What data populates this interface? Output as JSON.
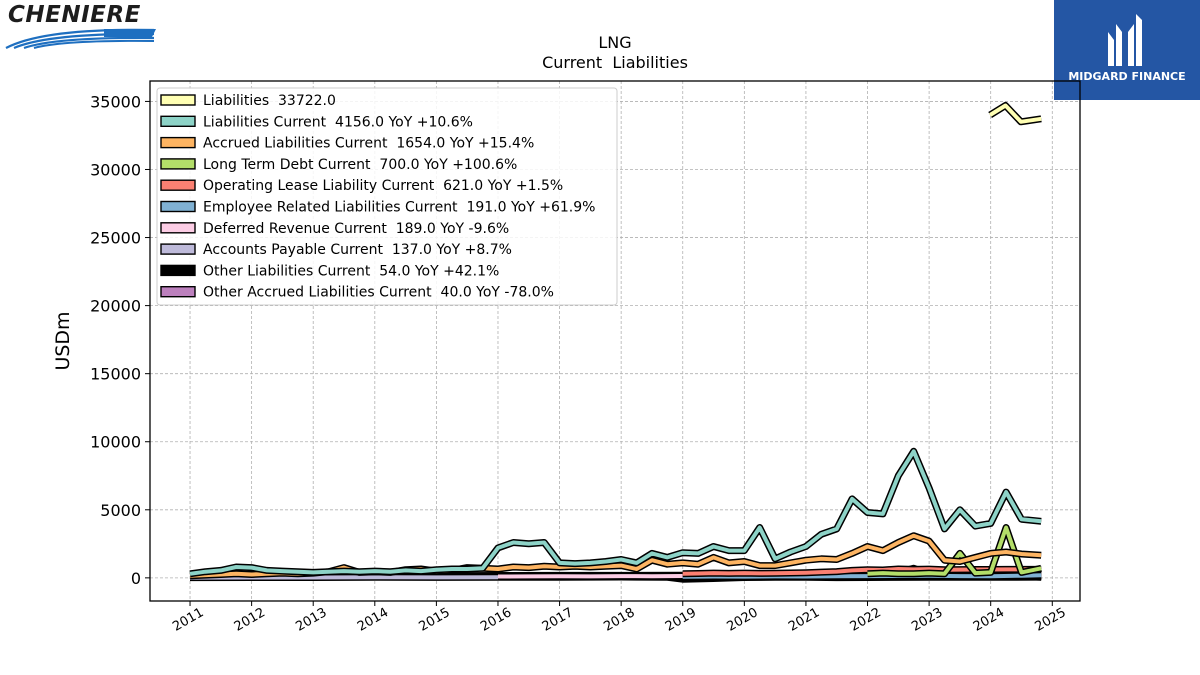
{
  "branding": {
    "left_logo_text": "CHENIERE",
    "right_logo_text": "MIDGARD FINANCE"
  },
  "colors": {
    "right_logo_bg": "#2456a4",
    "left_logo_swoosh": "#1e6fc0"
  },
  "chart_data": {
    "type": "line",
    "title": "LNG",
    "subtitle": "Current  Liabilities",
    "xlabel": "",
    "ylabel": "USDm",
    "xlim": [
      2010.35,
      2025.45
    ],
    "ylim": [
      -1700,
      36500
    ],
    "yticks": [
      0,
      5000,
      10000,
      15000,
      20000,
      25000,
      30000,
      35000
    ],
    "xticks": [
      "2011",
      "2012",
      "2013",
      "2014",
      "2015",
      "2016",
      "2017",
      "2018",
      "2019",
      "2020",
      "2021",
      "2022",
      "2023",
      "2024",
      "2025"
    ],
    "grid": true,
    "legend_position": "top-left",
    "series": [
      {
        "name": "Liabilities",
        "legend": "Liabilities  33722.0",
        "color": "#ffffb3",
        "x": [
          2023.99,
          2024.24,
          2024.49,
          2024.82
        ],
        "y": [
          34000,
          34700,
          33500,
          33722
        ]
      },
      {
        "name": "Liabilities Current",
        "legend": "Liabilities Current  4156.0 YoY +10.6%",
        "color": "#8dd3c7",
        "x": [
          2011.0,
          2011.25,
          2011.5,
          2011.75,
          2012.0,
          2012.25,
          2012.5,
          2012.75,
          2013.0,
          2013.25,
          2013.5,
          2013.75,
          2014.0,
          2014.25,
          2014.5,
          2014.75,
          2015.0,
          2015.25,
          2015.5,
          2015.75,
          2016.0,
          2016.25,
          2016.5,
          2016.75,
          2017.0,
          2017.25,
          2017.5,
          2017.75,
          2018.0,
          2018.25,
          2018.5,
          2018.75,
          2019.0,
          2019.25,
          2019.5,
          2019.75,
          2020.0,
          2020.25,
          2020.5,
          2020.75,
          2021.0,
          2021.25,
          2021.5,
          2021.75,
          2022.0,
          2022.25,
          2022.5,
          2022.75,
          2023.0,
          2023.25,
          2023.5,
          2023.75,
          2024.0,
          2024.25,
          2024.5,
          2024.82
        ],
        "y": [
          300,
          450,
          550,
          800,
          750,
          550,
          500,
          450,
          400,
          450,
          500,
          450,
          500,
          450,
          550,
          500,
          600,
          650,
          650,
          700,
          2200,
          2600,
          2500,
          2600,
          1100,
          1050,
          1100,
          1200,
          1350,
          1100,
          1800,
          1500,
          1850,
          1800,
          2300,
          2000,
          2000,
          3700,
          1400,
          1900,
          2300,
          3200,
          3600,
          5800,
          4800,
          4700,
          7500,
          9300,
          6600,
          3600,
          5000,
          3800,
          4000,
          6300,
          4300,
          4156
        ]
      },
      {
        "name": "Accrued Liabilities Current",
        "legend": "Accrued Liabilities Current  1654.0 YoY +15.4%",
        "color": "#fdb462",
        "x": [
          2011.0,
          2011.25,
          2011.5,
          2011.75,
          2012.0,
          2012.25,
          2012.5,
          2012.75,
          2013.0,
          2013.25,
          2013.5,
          2013.75,
          2014.0,
          2014.25,
          2014.5,
          2014.75,
          2015.0,
          2015.25,
          2015.5,
          2015.75,
          2016.0,
          2016.25,
          2016.5,
          2016.75,
          2017.0,
          2017.25,
          2017.5,
          2017.75,
          2018.0,
          2018.25,
          2018.5,
          2018.75,
          2019.0,
          2019.25,
          2019.5,
          2019.75,
          2020.0,
          2020.25,
          2020.5,
          2020.75,
          2021.0,
          2021.25,
          2021.5,
          2021.75,
          2022.0,
          2022.25,
          2022.5,
          2022.75,
          2023.0,
          2023.25,
          2023.5,
          2023.75,
          2024.0,
          2024.25,
          2024.5,
          2024.82
        ],
        "y": [
          150,
          200,
          250,
          300,
          250,
          300,
          350,
          300,
          350,
          450,
          750,
          400,
          450,
          400,
          600,
          650,
          500,
          550,
          750,
          700,
          650,
          800,
          750,
          850,
          800,
          850,
          800,
          850,
          900,
          650,
          1300,
          1000,
          1100,
          1000,
          1500,
          1100,
          1200,
          900,
          900,
          1100,
          1300,
          1400,
          1350,
          1800,
          2300,
          2000,
          2600,
          3100,
          2700,
          1300,
          1200,
          1500,
          1800,
          1900,
          1750,
          1654
        ]
      },
      {
        "name": "Long Term Debt Current",
        "legend": "Long Term Debt Current  700.0 YoY +100.6%",
        "color": "#b3de69",
        "x": [
          2022.0,
          2022.25,
          2022.5,
          2022.75,
          2023.0,
          2023.25,
          2023.5,
          2023.75,
          2024.0,
          2024.25,
          2024.5,
          2024.82
        ],
        "y": [
          300,
          350,
          300,
          300,
          350,
          300,
          1800,
          350,
          400,
          3700,
          400,
          700
        ]
      },
      {
        "name": "Operating Lease Liability Current",
        "legend": "Operating Lease Liability Current  621.0 YoY +1.5%",
        "color": "#fb8072",
        "x": [
          2019.0,
          2019.25,
          2019.5,
          2019.75,
          2020.0,
          2020.25,
          2020.5,
          2020.75,
          2021.0,
          2021.25,
          2021.5,
          2021.75,
          2022.0,
          2022.25,
          2022.5,
          2022.75,
          2023.0,
          2023.25,
          2023.5,
          2023.75,
          2024.0,
          2024.25,
          2024.5,
          2024.82
        ],
        "y": [
          300,
          320,
          350,
          330,
          350,
          330,
          340,
          360,
          380,
          420,
          460,
          550,
          600,
          580,
          650,
          620,
          640,
          600,
          610,
          612,
          615,
          620,
          618,
          621
        ]
      },
      {
        "name": "Employee Related Liabilities Current",
        "legend": "Employee Related Liabilities Current  191.0 YoY +61.9%",
        "color": "#80b1d3",
        "x": [
          2019.0,
          2019.5,
          2020.0,
          2020.5,
          2021.0,
          2021.5,
          2022.0,
          2022.5,
          2023.0,
          2023.5,
          2024.0,
          2024.5,
          2024.82
        ],
        "y": [
          80,
          100,
          90,
          110,
          100,
          120,
          130,
          140,
          150,
          130,
          118,
          160,
          191
        ]
      },
      {
        "name": "Deferred Revenue Current",
        "legend": "Deferred Revenue Current  189.0 YoY -9.6%",
        "color": "#fccde5",
        "x": [
          2016.0,
          2016.5,
          2017.0,
          2017.5,
          2018.0,
          2018.5,
          2019.0,
          2019.5,
          2020.0,
          2020.5,
          2021.0,
          2021.5,
          2022.0,
          2022.25,
          2022.5,
          2022.75,
          2023.0,
          2023.5,
          2024.0,
          2024.5,
          2024.82
        ],
        "y": [
          100,
          110,
          120,
          110,
          130,
          120,
          140,
          130,
          150,
          140,
          160,
          150,
          200,
          350,
          400,
          700,
          300,
          250,
          209,
          200,
          189
        ]
      },
      {
        "name": "Accounts Payable Current",
        "legend": "Accounts Payable Current  137.0 YoY +8.7%",
        "color": "#bebada",
        "x": [
          2011.0,
          2012.0,
          2013.0,
          2014.0,
          2015.0,
          2016.0,
          2017.0,
          2018.0,
          2019.0,
          2020.0,
          2021.0,
          2022.0,
          2023.0,
          2024.0,
          2024.82
        ],
        "y": [
          20,
          25,
          30,
          40,
          35,
          40,
          45,
          60,
          80,
          70,
          90,
          120,
          110,
          126,
          137
        ]
      },
      {
        "name": "Other Liabilities Current",
        "legend": "Other Liabilities Current  54.0 YoY +42.1%",
        "color": "#000000",
        "x": [
          2011.0,
          2012.0,
          2013.0,
          2014.0,
          2015.0,
          2016.0,
          2017.0,
          2018.0,
          2018.75,
          2019.0,
          2019.5,
          2020.0,
          2020.5,
          2021.0,
          2021.5,
          2022.0,
          2023.0,
          2024.0,
          2024.82
        ],
        "y": [
          100,
          120,
          130,
          110,
          90,
          80,
          70,
          60,
          40,
          -100,
          -50,
          30,
          40,
          50,
          20,
          30,
          40,
          38,
          54
        ]
      },
      {
        "name": "Other Accrued Liabilities Current",
        "legend": "Other Accrued Liabilities Current  40.0 YoY -78.0%",
        "color": "#bc80bd",
        "x": [
          2014.0,
          2015.0,
          2016.0,
          2017.0,
          2018.0,
          2019.0,
          2020.0,
          2021.0,
          2022.0,
          2023.0,
          2023.5,
          2024.0,
          2024.5,
          2024.82
        ],
        "y": [
          150,
          160,
          170,
          180,
          180,
          190,
          200,
          190,
          200,
          210,
          200,
          182,
          120,
          40
        ]
      }
    ]
  }
}
